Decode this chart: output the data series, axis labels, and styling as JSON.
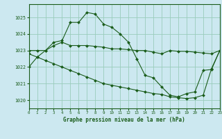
{
  "background_color": "#cce8f0",
  "grid_color": "#99ccbb",
  "line_color": "#1a5c1a",
  "marker_color": "#1a5c1a",
  "title": "Graphe pression niveau de la mer (hPa)",
  "xlim": [
    0,
    23
  ],
  "ylim": [
    1019.5,
    1025.8
  ],
  "yticks": [
    1020,
    1021,
    1022,
    1023,
    1024,
    1025
  ],
  "xticks": [
    0,
    1,
    2,
    3,
    4,
    5,
    6,
    7,
    8,
    9,
    10,
    11,
    12,
    13,
    14,
    15,
    16,
    17,
    18,
    19,
    20,
    21,
    22,
    23
  ],
  "series": [
    {
      "x": [
        0,
        1,
        2,
        3,
        4,
        5,
        6,
        7,
        8,
        9,
        10,
        11,
        12,
        13,
        14,
        15,
        16,
        17,
        18,
        19,
        20,
        21,
        22,
        23
      ],
      "y": [
        1022.0,
        1022.6,
        1023.0,
        1023.5,
        1023.6,
        1024.7,
        1024.7,
        1025.3,
        1025.2,
        1024.6,
        1024.4,
        1024.0,
        1023.5,
        1022.5,
        1021.5,
        1021.35,
        1020.8,
        1020.3,
        1020.2,
        1020.4,
        1020.5,
        1021.8,
        1021.85,
        1023.0
      ]
    },
    {
      "x": [
        0,
        1,
        2,
        3,
        4,
        5,
        6,
        7,
        8,
        9,
        10,
        11,
        12,
        13,
        14,
        15,
        16,
        17,
        18,
        19,
        20,
        21,
        22,
        23
      ],
      "y": [
        1023.0,
        1023.0,
        1023.0,
        1023.3,
        1023.5,
        1023.3,
        1023.3,
        1023.3,
        1023.25,
        1023.2,
        1023.1,
        1023.1,
        1023.05,
        1023.0,
        1023.0,
        1022.9,
        1022.8,
        1023.0,
        1022.95,
        1022.95,
        1022.9,
        1022.85,
        1022.8,
        1023.0
      ]
    },
    {
      "x": [
        0,
        1,
        2,
        3,
        4,
        5,
        6,
        7,
        8,
        9,
        10,
        11,
        12,
        13,
        14,
        15,
        16,
        17,
        18,
        19,
        20,
        21,
        22,
        23
      ],
      "y": [
        1022.8,
        1022.6,
        1022.4,
        1022.2,
        1022.0,
        1021.8,
        1021.6,
        1021.4,
        1021.2,
        1021.0,
        1020.9,
        1020.8,
        1020.7,
        1020.6,
        1020.5,
        1020.4,
        1020.35,
        1020.2,
        1020.15,
        1020.1,
        1020.15,
        1020.3,
        1021.9,
        1023.0
      ]
    }
  ]
}
